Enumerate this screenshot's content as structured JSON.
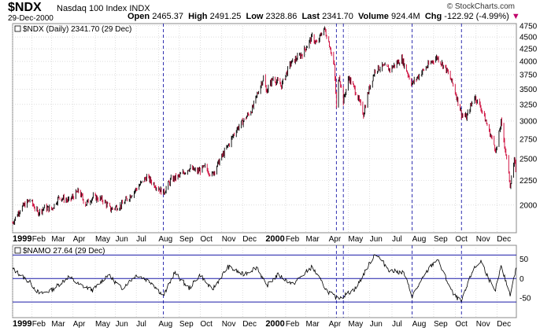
{
  "header": {
    "symbol": "$NDX",
    "name": "Nasdaq 100 Index",
    "exchange": "INDX",
    "date": "29-Dec-2000",
    "open_label": "Open",
    "open": "2465.37",
    "high_label": "High",
    "high": "2491.25",
    "low_label": "Low",
    "low": "2328.86",
    "last_label": "Last",
    "last": "2341.70",
    "volume_label": "Volume",
    "volume": "924.4M",
    "chg_label": "Chg",
    "chg": "-122.92 (-4.99%)",
    "credit": "© StockCharts.com"
  },
  "colors": {
    "up": "#000000",
    "down": "#cc0033",
    "grid": "#c8c8c8",
    "marker": "#1a1aa8",
    "ref": "#1a1aa8",
    "line": "#000000"
  },
  "chart_data": [
    {
      "type": "line",
      "legend": "$NDX (Daily) 2341.70 (29 Dec)",
      "y_scale": "log",
      "ylim": [
        1750,
        4800
      ],
      "y_ticks": [
        2000,
        2250,
        2500,
        2750,
        3000,
        3250,
        3500,
        3750,
        4000,
        4250,
        4500,
        4750
      ],
      "x_start": "1999-01-04",
      "x_end": "2000-12-29",
      "x_ticks": [
        {
          "date": "1999-01-04",
          "label": "1999",
          "bold": true
        },
        {
          "date": "1999-02-01",
          "label": "Feb"
        },
        {
          "date": "1999-03-01",
          "label": "Mar"
        },
        {
          "date": "1999-04-01",
          "label": "Apr"
        },
        {
          "date": "1999-05-03",
          "label": "May"
        },
        {
          "date": "1999-06-01",
          "label": "Jun"
        },
        {
          "date": "1999-07-01",
          "label": "Jul"
        },
        {
          "date": "1999-08-02",
          "label": "Aug"
        },
        {
          "date": "1999-09-01",
          "label": "Sep"
        },
        {
          "date": "1999-10-01",
          "label": "Oct"
        },
        {
          "date": "1999-11-01",
          "label": "Nov"
        },
        {
          "date": "1999-12-01",
          "label": "Dec"
        },
        {
          "date": "2000-01-03",
          "label": "2000",
          "bold": true
        },
        {
          "date": "2000-02-01",
          "label": "Feb"
        },
        {
          "date": "2000-03-01",
          "label": "Mar"
        },
        {
          "date": "2000-04-03",
          "label": "Apr"
        },
        {
          "date": "2000-05-01",
          "label": "May"
        },
        {
          "date": "2000-06-01",
          "label": "Jun"
        },
        {
          "date": "2000-07-03",
          "label": "Jul"
        },
        {
          "date": "2000-08-01",
          "label": "Aug"
        },
        {
          "date": "2000-09-01",
          "label": "Sep"
        },
        {
          "date": "2000-10-02",
          "label": "Oct"
        },
        {
          "date": "2000-11-01",
          "label": "Nov"
        },
        {
          "date": "2000-12-01",
          "label": "Dec"
        }
      ],
      "markers": [
        "1999-08-09",
        "2000-04-14",
        "2000-04-24",
        "2000-08-01",
        "2000-10-11"
      ],
      "series": [
        {
          "points": [
            [
              "1999-01-04",
              1836
            ],
            [
              "1999-01-15",
              1960
            ],
            [
              "1999-01-29",
              2050
            ],
            [
              "1999-02-09",
              1930
            ],
            [
              "1999-02-19",
              1975
            ],
            [
              "1999-03-01",
              1960
            ],
            [
              "1999-03-12",
              2080
            ],
            [
              "1999-03-26",
              2040
            ],
            [
              "1999-04-09",
              2140
            ],
            [
              "1999-04-19",
              2010
            ],
            [
              "1999-04-30",
              2080
            ],
            [
              "1999-05-14",
              2050
            ],
            [
              "1999-05-25",
              1960
            ],
            [
              "1999-06-10",
              2000
            ],
            [
              "1999-06-22",
              2090
            ],
            [
              "1999-07-02",
              2170
            ],
            [
              "1999-07-16",
              2290
            ],
            [
              "1999-07-27",
              2210
            ],
            [
              "1999-08-09",
              2120
            ],
            [
              "1999-08-20",
              2260
            ],
            [
              "1999-09-01",
              2300
            ],
            [
              "1999-09-15",
              2390
            ],
            [
              "1999-09-27",
              2350
            ],
            [
              "1999-10-08",
              2400
            ],
            [
              "1999-10-18",
              2310
            ],
            [
              "1999-10-29",
              2480
            ],
            [
              "1999-11-10",
              2660
            ],
            [
              "1999-11-22",
              2880
            ],
            [
              "1999-12-02",
              3000
            ],
            [
              "1999-12-15",
              3180
            ],
            [
              "1999-12-31",
              3700
            ],
            [
              "2000-01-04",
              3460
            ],
            [
              "2000-01-14",
              3690
            ],
            [
              "2000-01-26",
              3560
            ],
            [
              "2000-02-08",
              3960
            ],
            [
              "2000-02-25",
              4150
            ],
            [
              "2000-03-10",
              4500
            ],
            [
              "2000-03-17",
              4350
            ],
            [
              "2000-03-27",
              4700
            ],
            [
              "2000-04-03",
              4400
            ],
            [
              "2000-04-11",
              3900
            ],
            [
              "2000-04-14",
              3200
            ],
            [
              "2000-04-18",
              3750
            ],
            [
              "2000-04-24",
              3300
            ],
            [
              "2000-05-02",
              3700
            ],
            [
              "2000-05-12",
              3450
            ],
            [
              "2000-05-23",
              3100
            ],
            [
              "2000-05-31",
              3500
            ],
            [
              "2000-06-09",
              3850
            ],
            [
              "2000-06-20",
              3900
            ],
            [
              "2000-06-30",
              3850
            ],
            [
              "2000-07-17",
              4050
            ],
            [
              "2000-07-28",
              3700
            ],
            [
              "2000-08-01",
              3590
            ],
            [
              "2000-08-15",
              3800
            ],
            [
              "2000-08-31",
              4020
            ],
            [
              "2000-09-06",
              4080
            ],
            [
              "2000-09-19",
              3850
            ],
            [
              "2000-09-29",
              3570
            ],
            [
              "2000-10-11",
              3100
            ],
            [
              "2000-10-18",
              3050
            ],
            [
              "2000-10-30",
              3380
            ],
            [
              "2000-11-08",
              3200
            ],
            [
              "2000-11-20",
              2850
            ],
            [
              "2000-11-30",
              2600
            ],
            [
              "2000-12-07",
              2980
            ],
            [
              "2000-12-20",
              2200
            ],
            [
              "2000-12-26",
              2470
            ],
            [
              "2000-12-29",
              2341.7
            ]
          ]
        }
      ]
    },
    {
      "type": "line",
      "legend": "$NAMO 27.64 (29 Dec)",
      "ylim": [
        -100,
        85
      ],
      "y_ticks": [
        50,
        0,
        -50
      ],
      "reference_lines": [
        60,
        0,
        -60
      ],
      "series": [
        {
          "points": [
            [
              "1999-01-04",
              25
            ],
            [
              "1999-01-29",
              -10
            ],
            [
              "1999-02-12",
              -40
            ],
            [
              "1999-03-01",
              -30
            ],
            [
              "1999-03-26",
              5
            ],
            [
              "1999-04-09",
              -15
            ],
            [
              "1999-04-30",
              -30
            ],
            [
              "1999-05-21",
              10
            ],
            [
              "1999-06-10",
              -25
            ],
            [
              "1999-07-02",
              10
            ],
            [
              "1999-07-23",
              -10
            ],
            [
              "1999-08-09",
              -45
            ],
            [
              "1999-08-25",
              15
            ],
            [
              "1999-09-15",
              -25
            ],
            [
              "1999-10-01",
              10
            ],
            [
              "1999-10-18",
              -30
            ],
            [
              "1999-11-10",
              30
            ],
            [
              "1999-12-02",
              10
            ],
            [
              "1999-12-22",
              30
            ],
            [
              "2000-01-04",
              -20
            ],
            [
              "2000-01-21",
              10
            ],
            [
              "2000-02-11",
              -15
            ],
            [
              "2000-03-10",
              30
            ],
            [
              "2000-03-31",
              -30
            ],
            [
              "2000-04-14",
              -50
            ],
            [
              "2000-04-24",
              -45
            ],
            [
              "2000-05-12",
              -25
            ],
            [
              "2000-06-09",
              65
            ],
            [
              "2000-06-30",
              20
            ],
            [
              "2000-07-20",
              15
            ],
            [
              "2000-08-01",
              -45
            ],
            [
              "2000-08-25",
              25
            ],
            [
              "2000-09-06",
              50
            ],
            [
              "2000-09-29",
              -40
            ],
            [
              "2000-10-11",
              -60
            ],
            [
              "2000-10-27",
              20
            ],
            [
              "2000-11-08",
              45
            ],
            [
              "2000-11-28",
              -35
            ],
            [
              "2000-12-07",
              30
            ],
            [
              "2000-12-20",
              -40
            ],
            [
              "2000-12-29",
              27.64
            ]
          ]
        }
      ]
    }
  ]
}
